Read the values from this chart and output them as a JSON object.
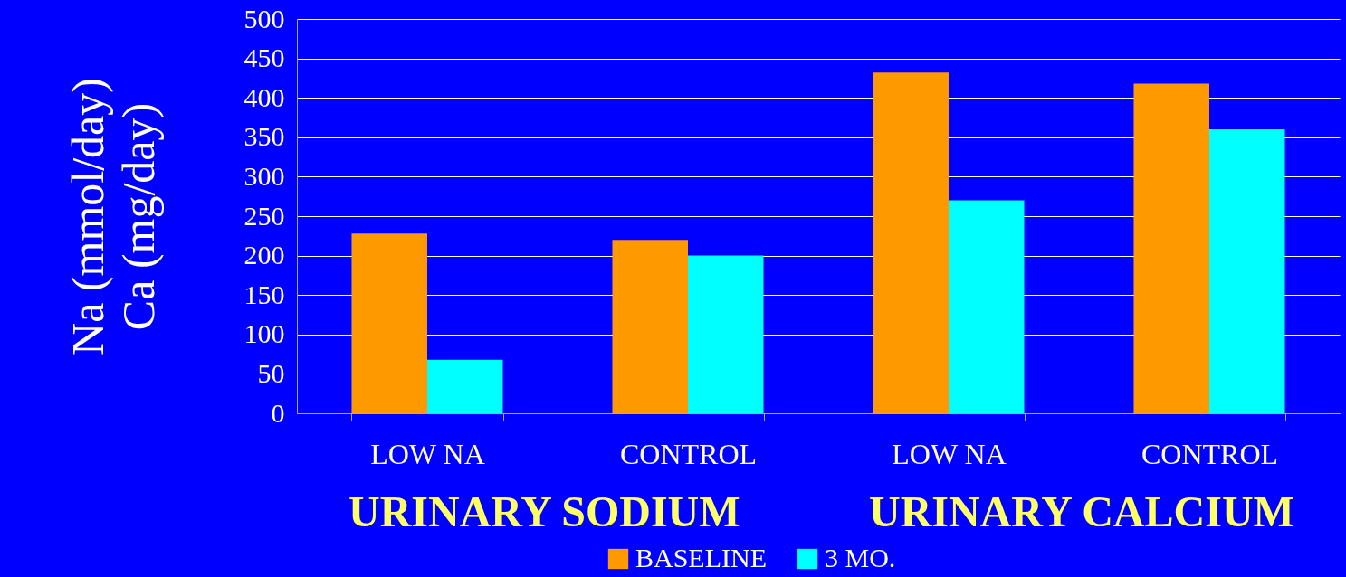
{
  "chart_data": {
    "type": "bar",
    "ylabel": [
      "Na (mmol/day)",
      "Ca (mg/day)"
    ],
    "categories": [
      "LOW NA",
      "CONTROL",
      "LOW NA",
      "CONTROL"
    ],
    "series": [
      {
        "name": "BASELINE",
        "color": "#ff9900",
        "values": [
          228,
          220,
          432,
          418
        ]
      },
      {
        "name": "3 MO.",
        "color": "#00ffff",
        "values": [
          68,
          200,
          270,
          360
        ]
      }
    ],
    "ylim": [
      0,
      500
    ],
    "yticks": [
      0,
      50,
      100,
      150,
      200,
      250,
      300,
      350,
      400,
      450,
      500
    ],
    "grid": "y",
    "legend": "bottom",
    "annotations": [
      "URINARY SODIUM",
      "URINARY CALCIUM"
    ]
  }
}
